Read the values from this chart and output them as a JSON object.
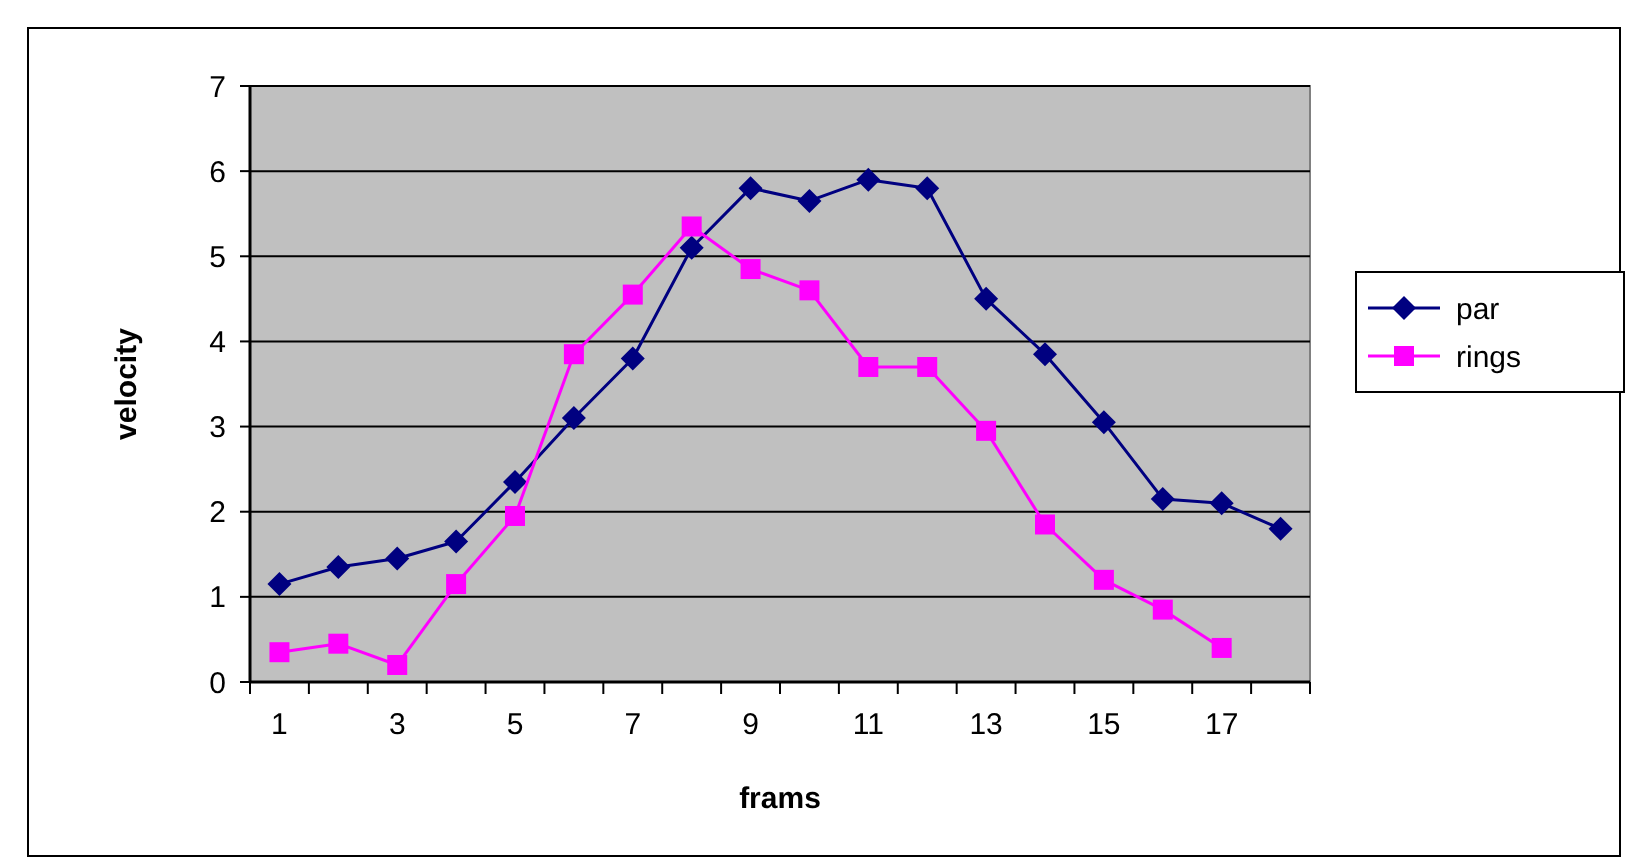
{
  "chart_data": {
    "type": "line",
    "xlabel": "frams",
    "ylabel": "velocity",
    "x": [
      1,
      2,
      3,
      4,
      5,
      6,
      7,
      8,
      9,
      10,
      11,
      12,
      13,
      14,
      15,
      16,
      17,
      18
    ],
    "series": [
      {
        "name": "par",
        "color": "#000080",
        "marker": "diamond",
        "values": [
          1.15,
          1.35,
          1.45,
          1.65,
          2.35,
          3.1,
          3.8,
          5.1,
          5.8,
          5.65,
          5.9,
          5.8,
          4.5,
          3.85,
          3.05,
          2.15,
          2.1,
          1.8
        ]
      },
      {
        "name": "rings",
        "color": "#ff00ff",
        "marker": "square",
        "values": [
          0.35,
          0.45,
          0.2,
          1.15,
          1.95,
          3.85,
          4.55,
          5.35,
          4.85,
          4.6,
          3.7,
          3.7,
          2.95,
          1.85,
          1.2,
          0.85,
          0.4,
          null
        ]
      }
    ],
    "xlim": [
      0.5,
      18.5
    ],
    "xticks": [
      {
        "value": 0.5,
        "label": null
      },
      1,
      {
        "value": 1.5,
        "label": null
      },
      {
        "value": 2.5,
        "label": null
      },
      3,
      {
        "value": 3.5,
        "label": null
      },
      {
        "value": 4.5,
        "label": null
      },
      5,
      {
        "value": 5.5,
        "label": null
      },
      {
        "value": 6.5,
        "label": null
      },
      7,
      {
        "value": 7.5,
        "label": null
      },
      {
        "value": 8.5,
        "label": null
      },
      9,
      {
        "value": 9.5,
        "label": null
      },
      {
        "value": 10.5,
        "label": null
      },
      11,
      {
        "value": 11.5,
        "label": null
      },
      {
        "value": 12.5,
        "label": null
      },
      13,
      {
        "value": 13.5,
        "label": null
      },
      {
        "value": 14.5,
        "label": null
      },
      15,
      {
        "value": 15.5,
        "label": null
      },
      {
        "value": 16.5,
        "label": null
      },
      17,
      {
        "value": 17.5,
        "label": null
      },
      {
        "value": 18.5,
        "label": null
      }
    ],
    "ylim": [
      0,
      7
    ],
    "yticks": [
      0,
      1,
      2,
      3,
      4,
      5,
      6,
      7
    ],
    "grid": "y",
    "legend": "right"
  }
}
